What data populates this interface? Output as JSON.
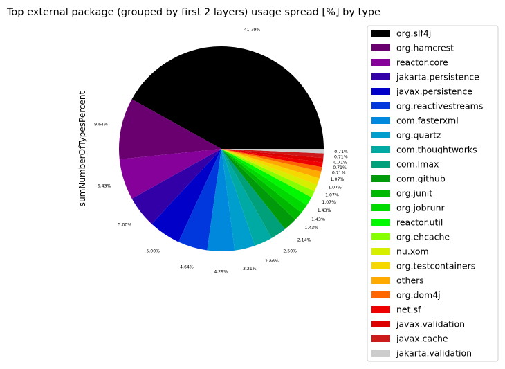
{
  "chart_data": {
    "type": "pie",
    "title": "Top external package (grouped by first 2 layers) usage spread [%] by type",
    "ylabel": "sumNumberOfTypesPercent",
    "legend_position": "right",
    "slices": [
      {
        "label": "org.slf4j",
        "value": 41.79,
        "value_label": "41.79%",
        "color": "#000000"
      },
      {
        "label": "org.hamcrest",
        "value": 9.64,
        "value_label": "9.64%",
        "color": "#6a0070"
      },
      {
        "label": "reactor.core",
        "value": 6.43,
        "value_label": "6.43%",
        "color": "#86009a"
      },
      {
        "label": "jakarta.persistence",
        "value": 5.0,
        "value_label": "5.00%",
        "color": "#3300a8"
      },
      {
        "label": "javax.persistence",
        "value": 5.0,
        "value_label": "5.00%",
        "color": "#0000c8"
      },
      {
        "label": "org.reactivestreams",
        "value": 4.64,
        "value_label": "4.64%",
        "color": "#0038dd"
      },
      {
        "label": "com.fasterxml",
        "value": 4.29,
        "value_label": "4.29%",
        "color": "#0088dd"
      },
      {
        "label": "org.quartz",
        "value": 3.21,
        "value_label": "3.21%",
        "color": "#009ecc"
      },
      {
        "label": "com.thoughtworks",
        "value": 2.86,
        "value_label": "2.86%",
        "color": "#00aaa4"
      },
      {
        "label": "com.lmax",
        "value": 2.5,
        "value_label": "2.50%",
        "color": "#00a07a"
      },
      {
        "label": "com.github",
        "value": 2.14,
        "value_label": "2.14%",
        "color": "#009a0a"
      },
      {
        "label": "org.junit",
        "value": 1.43,
        "value_label": "1.43%",
        "color": "#00b800"
      },
      {
        "label": "org.jobrunr",
        "value": 1.43,
        "value_label": "1.43%",
        "color": "#00da00"
      },
      {
        "label": "reactor.util",
        "value": 1.43,
        "value_label": "1.43%",
        "color": "#00f800"
      },
      {
        "label": "org.ehcache",
        "value": 1.07,
        "value_label": "1.07%",
        "color": "#88ff00"
      },
      {
        "label": "nu.xom",
        "value": 1.07,
        "value_label": "1.07%",
        "color": "#d6ee00"
      },
      {
        "label": "org.testcontainers",
        "value": 1.07,
        "value_label": "1.07%",
        "color": "#f4d800"
      },
      {
        "label": "others",
        "value": 1.07,
        "value_label": "1.07%",
        "color": "#ffaa00"
      },
      {
        "label": "org.dom4j",
        "value": 0.71,
        "value_label": "0.71%",
        "color": "#ff6600"
      },
      {
        "label": "net.sf",
        "value": 0.71,
        "value_label": "0.71%",
        "color": "#ee0000"
      },
      {
        "label": "javax.validation",
        "value": 0.71,
        "value_label": "0.71%",
        "color": "#dd0000"
      },
      {
        "label": "javax.cache",
        "value": 0.71,
        "value_label": "0.71%",
        "color": "#cc1a1a"
      },
      {
        "label": "jakarta.validation",
        "value": 0.71,
        "value_label": "0.71%",
        "color": "#cccccc"
      }
    ]
  }
}
